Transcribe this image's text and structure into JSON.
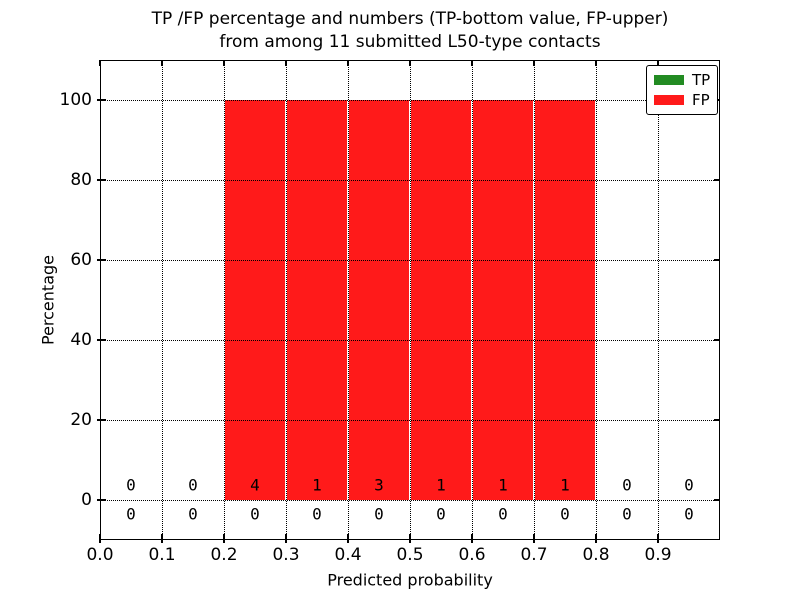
{
  "chart_data": {
    "type": "bar",
    "subtype": "stacked-percentage-histogram",
    "title": "TP /FP percentage and numbers (TP-bottom value, FP-upper) from among 11 submitted L50-type contacts",
    "title_line1": "TP /FP percentage and numbers (TP-bottom value, FP-upper)",
    "title_line2": "from among 11 submitted L50-type contacts",
    "xlabel": "Predicted probability",
    "ylabel": "Percentage",
    "xlim": [
      0.0,
      1.0
    ],
    "ylim": [
      -10,
      110
    ],
    "grid": true,
    "grid_style": "dotted",
    "background_color": "#ffffff",
    "total_contacts": 11,
    "x_ticks": [
      {
        "value": 0.0,
        "label": "0.0"
      },
      {
        "value": 0.1,
        "label": "0.1"
      },
      {
        "value": 0.2,
        "label": "0.2"
      },
      {
        "value": 0.3,
        "label": "0.3"
      },
      {
        "value": 0.4,
        "label": "0.4"
      },
      {
        "value": 0.5,
        "label": "0.5"
      },
      {
        "value": 0.6,
        "label": "0.6"
      },
      {
        "value": 0.7,
        "label": "0.7"
      },
      {
        "value": 0.8,
        "label": "0.8"
      },
      {
        "value": 0.9,
        "label": "0.9"
      }
    ],
    "y_ticks": [
      {
        "value": 0,
        "label": "0"
      },
      {
        "value": 20,
        "label": "20"
      },
      {
        "value": 40,
        "label": "40"
      },
      {
        "value": 60,
        "label": "60"
      },
      {
        "value": 80,
        "label": "80"
      },
      {
        "value": 100,
        "label": "100"
      }
    ],
    "bin_edges": [
      0.0,
      0.1,
      0.2,
      0.3,
      0.4,
      0.5,
      0.6,
      0.7,
      0.8,
      0.9,
      1.0
    ],
    "bin_centers": [
      0.05,
      0.15,
      0.25,
      0.35,
      0.45,
      0.55,
      0.65,
      0.75,
      0.85,
      0.95
    ],
    "categories": [
      "0.0-0.1",
      "0.1-0.2",
      "0.2-0.3",
      "0.3-0.4",
      "0.4-0.5",
      "0.5-0.6",
      "0.6-0.7",
      "0.7-0.8",
      "0.8-0.9",
      "0.9-1.0"
    ],
    "series": [
      {
        "name": "TP",
        "color": "#228b22",
        "percent": [
          0,
          0,
          0,
          0,
          0,
          0,
          0,
          0,
          0,
          0
        ],
        "counts": [
          0,
          0,
          0,
          0,
          0,
          0,
          0,
          0,
          0,
          0
        ]
      },
      {
        "name": "FP",
        "color": "#ff1a1a",
        "percent": [
          0,
          0,
          100,
          100,
          100,
          100,
          100,
          100,
          0,
          0
        ],
        "counts": [
          0,
          0,
          4,
          1,
          3,
          1,
          1,
          1,
          0,
          0
        ]
      }
    ],
    "count_rows": [
      {
        "series": "FP",
        "y": 3.75
      },
      {
        "series": "TP",
        "y": -3.5
      }
    ],
    "legend": {
      "position": "upper right",
      "entries": [
        {
          "label": "TP",
          "color": "#228b22"
        },
        {
          "label": "FP",
          "color": "#ff1a1a"
        }
      ]
    }
  }
}
